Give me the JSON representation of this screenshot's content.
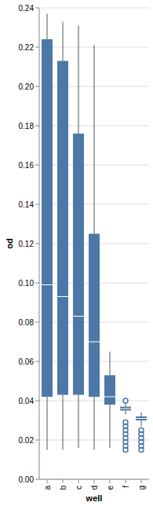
{
  "chart_data": {
    "type": "boxplot",
    "x_label": "well",
    "y_label": "od",
    "categories": [
      "a",
      "b",
      "c",
      "d",
      "e",
      "f",
      "g"
    ],
    "min": [
      0.015,
      0.015,
      0.016,
      0.015,
      0.016,
      0.033,
      0.027
    ],
    "q1": [
      0.042,
      0.043,
      0.043,
      0.042,
      0.038,
      0.035,
      0.03
    ],
    "median": [
      0.099,
      0.093,
      0.083,
      0.07,
      0.042,
      0.036,
      0.031
    ],
    "q3": [
      0.224,
      0.213,
      0.176,
      0.125,
      0.053,
      0.037,
      0.032
    ],
    "max": [
      0.237,
      0.233,
      0.231,
      0.221,
      0.065,
      0.039,
      0.034
    ],
    "outliers": [
      [],
      [],
      [],
      [],
      [],
      [
        0.04,
        0.029,
        0.027,
        0.025,
        0.023,
        0.021,
        0.019,
        0.017,
        0.015
      ],
      [
        0.025,
        0.023,
        0.021,
        0.019,
        0.017,
        0.015
      ]
    ],
    "color": "#4c78a8",
    "ylim": [
      0,
      0.24
    ],
    "yticks": [
      {
        "value": 0,
        "label": "0.00"
      },
      {
        "value": 0.02,
        "label": "0.02"
      },
      {
        "value": 0.04,
        "label": "0.04"
      },
      {
        "value": 0.06,
        "label": "0.06"
      },
      {
        "value": 0.08,
        "label": "0.08"
      },
      {
        "value": 0.1,
        "label": "0.10"
      },
      {
        "value": 0.12,
        "label": "0.12"
      },
      {
        "value": 0.14,
        "label": "0.14"
      },
      {
        "value": 0.16,
        "label": "0.16"
      },
      {
        "value": 0.18,
        "label": "0.18"
      },
      {
        "value": 0.2,
        "label": "0.20"
      },
      {
        "value": 0.22,
        "label": "0.22"
      },
      {
        "value": 0.24,
        "label": "0.24"
      }
    ],
    "grid": true
  }
}
